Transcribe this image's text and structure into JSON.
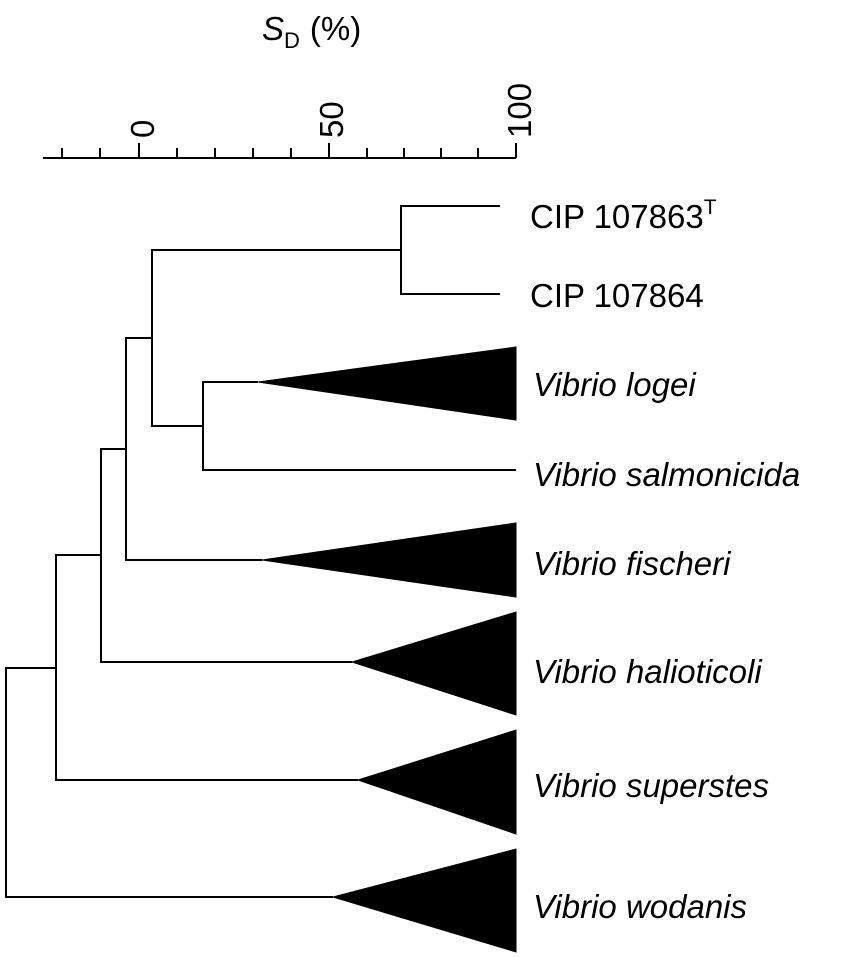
{
  "axis": {
    "title_main": "S",
    "title_sub": "D",
    "title_unit": "(%)",
    "tick_labels": [
      "0",
      "50",
      "100"
    ]
  },
  "leaves": [
    {
      "id": "cip863",
      "label": "CIP 107863",
      "sup": "T",
      "italic": false,
      "collapsed": false
    },
    {
      "id": "cip864",
      "label": "CIP 107864",
      "italic": false,
      "collapsed": false
    },
    {
      "id": "logei",
      "label": "Vibrio logei",
      "italic": true,
      "collapsed": true
    },
    {
      "id": "salmonicida",
      "label": "Vibrio salmonicida",
      "italic": true,
      "collapsed": false
    },
    {
      "id": "fischeri",
      "label": "Vibrio fischeri",
      "italic": true,
      "collapsed": true
    },
    {
      "id": "halioticoli",
      "label": "Vibrio halioticoli",
      "italic": true,
      "collapsed": true
    },
    {
      "id": "superstes",
      "label": "Vibrio superstes",
      "italic": true,
      "collapsed": true
    },
    {
      "id": "wodanis",
      "label": "Vibrio wodanis",
      "italic": true,
      "collapsed": true
    }
  ],
  "colors": {
    "line": "#000000",
    "fill": "#000000"
  }
}
